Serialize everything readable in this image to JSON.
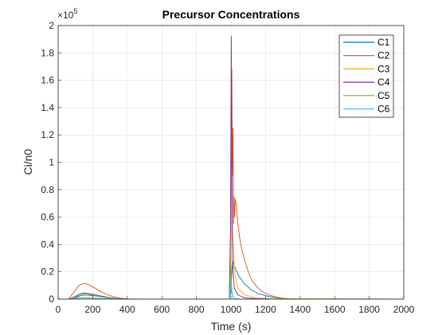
{
  "chart_data": {
    "type": "line",
    "title": "Precursor Concentrations",
    "xlabel": "Time (s)",
    "ylabel": "Ci/n0",
    "exponent_label": "×10",
    "exponent_power": "5",
    "xlim": [
      0,
      2000
    ],
    "ylim": [
      0,
      2
    ],
    "xticks": [
      0,
      200,
      400,
      600,
      800,
      1000,
      1200,
      1400,
      1600,
      1800,
      2000
    ],
    "xtick_labels": [
      "0",
      "200",
      "400",
      "600",
      "800",
      "1000",
      "1200",
      "1400",
      "1600",
      "1800",
      "2000"
    ],
    "yticks": [
      0,
      0.2,
      0.4,
      0.6,
      0.8,
      1,
      1.2,
      1.4,
      1.6,
      1.8,
      2
    ],
    "ytick_labels": [
      "0",
      "0.2",
      "0.4",
      "0.6",
      "0.8",
      "1",
      "1.2",
      "1.4",
      "1.6",
      "1.8",
      "2"
    ],
    "grid": true,
    "legend_position": "top-right",
    "series": [
      {
        "name": "C1",
        "color": "#0072BD",
        "x": [
          0,
          60,
          100,
          130,
          150,
          180,
          220,
          260,
          300,
          350,
          400,
          500,
          990,
          1000,
          1005,
          1010,
          1015,
          1020,
          1030,
          1050,
          1080,
          1120,
          1160,
          1200,
          1250,
          1300,
          1400,
          2000
        ],
        "y": [
          0,
          0,
          0.01,
          0.025,
          0.03,
          0.028,
          0.022,
          0.015,
          0.008,
          0.003,
          0.001,
          0,
          0,
          0.05,
          0.2,
          0.28,
          0.26,
          0.24,
          0.21,
          0.16,
          0.11,
          0.065,
          0.04,
          0.025,
          0.012,
          0.005,
          0,
          0
        ]
      },
      {
        "name": "C2",
        "color": "#D95319",
        "x": [
          0,
          60,
          90,
          120,
          150,
          170,
          200,
          240,
          280,
          320,
          360,
          400,
          500,
          990,
          1000,
          1005,
          1008,
          1012,
          1015,
          1018,
          1020,
          1025,
          1030,
          1035,
          1040,
          1050,
          1060,
          1080,
          1100,
          1120,
          1150,
          1180,
          1220,
          1260,
          1300,
          1350,
          2000
        ],
        "y": [
          0,
          0,
          0.05,
          0.1,
          0.115,
          0.11,
          0.09,
          0.06,
          0.035,
          0.017,
          0.007,
          0.002,
          0,
          0,
          0.3,
          1.68,
          0.9,
          1.25,
          0.55,
          0.75,
          0.6,
          0.73,
          0.7,
          0.62,
          0.55,
          0.45,
          0.38,
          0.28,
          0.2,
          0.14,
          0.09,
          0.055,
          0.03,
          0.015,
          0.006,
          0.002,
          0
        ]
      },
      {
        "name": "C3",
        "color": "#EDB120",
        "x": [
          0,
          60,
          120,
          150,
          200,
          260,
          320,
          400,
          990,
          1000,
          1005,
          1010,
          1020,
          1040,
          1080,
          1150,
          1250,
          2000
        ],
        "y": [
          0,
          0,
          0.01,
          0.012,
          0.01,
          0.005,
          0.002,
          0,
          0,
          0.4,
          0.95,
          0.5,
          0.2,
          0.08,
          0.03,
          0.01,
          0.002,
          0
        ]
      },
      {
        "name": "C4",
        "color": "#7E2F8E",
        "x": [
          0,
          60,
          100,
          130,
          150,
          180,
          220,
          260,
          300,
          350,
          400,
          500,
          990,
          997,
          1002,
          1005,
          1008,
          1012,
          1020,
          1040,
          1080,
          1150,
          1250,
          2000
        ],
        "y": [
          0,
          0,
          0.02,
          0.04,
          0.045,
          0.04,
          0.03,
          0.02,
          0.01,
          0.003,
          0.001,
          0,
          0,
          0.5,
          1.92,
          1.0,
          0.45,
          0.2,
          0.08,
          0.03,
          0.01,
          0.003,
          0,
          0
        ]
      },
      {
        "name": "C5",
        "color": "#77AC30",
        "x": [
          0,
          60,
          100,
          130,
          150,
          180,
          220,
          260,
          300,
          350,
          400,
          990,
          995,
          1000,
          1003,
          1006,
          1010,
          1015,
          1025,
          1050,
          1100,
          2000
        ],
        "y": [
          0,
          0,
          0.015,
          0.035,
          0.04,
          0.035,
          0.025,
          0.015,
          0.007,
          0.002,
          0,
          0,
          0.1,
          0.25,
          0.12,
          0.05,
          0.02,
          0.008,
          0.003,
          0.001,
          0,
          0
        ]
      },
      {
        "name": "C6",
        "color": "#4DBEEE",
        "x": [
          0,
          60,
          100,
          150,
          200,
          260,
          320,
          400,
          990,
          995,
          1000,
          1004,
          1010,
          1020,
          1040,
          1100,
          2000
        ],
        "y": [
          0,
          0,
          0.005,
          0.008,
          0.006,
          0.003,
          0.001,
          0,
          0,
          0.05,
          0.12,
          0.05,
          0.015,
          0.005,
          0.001,
          0,
          0
        ]
      }
    ]
  }
}
